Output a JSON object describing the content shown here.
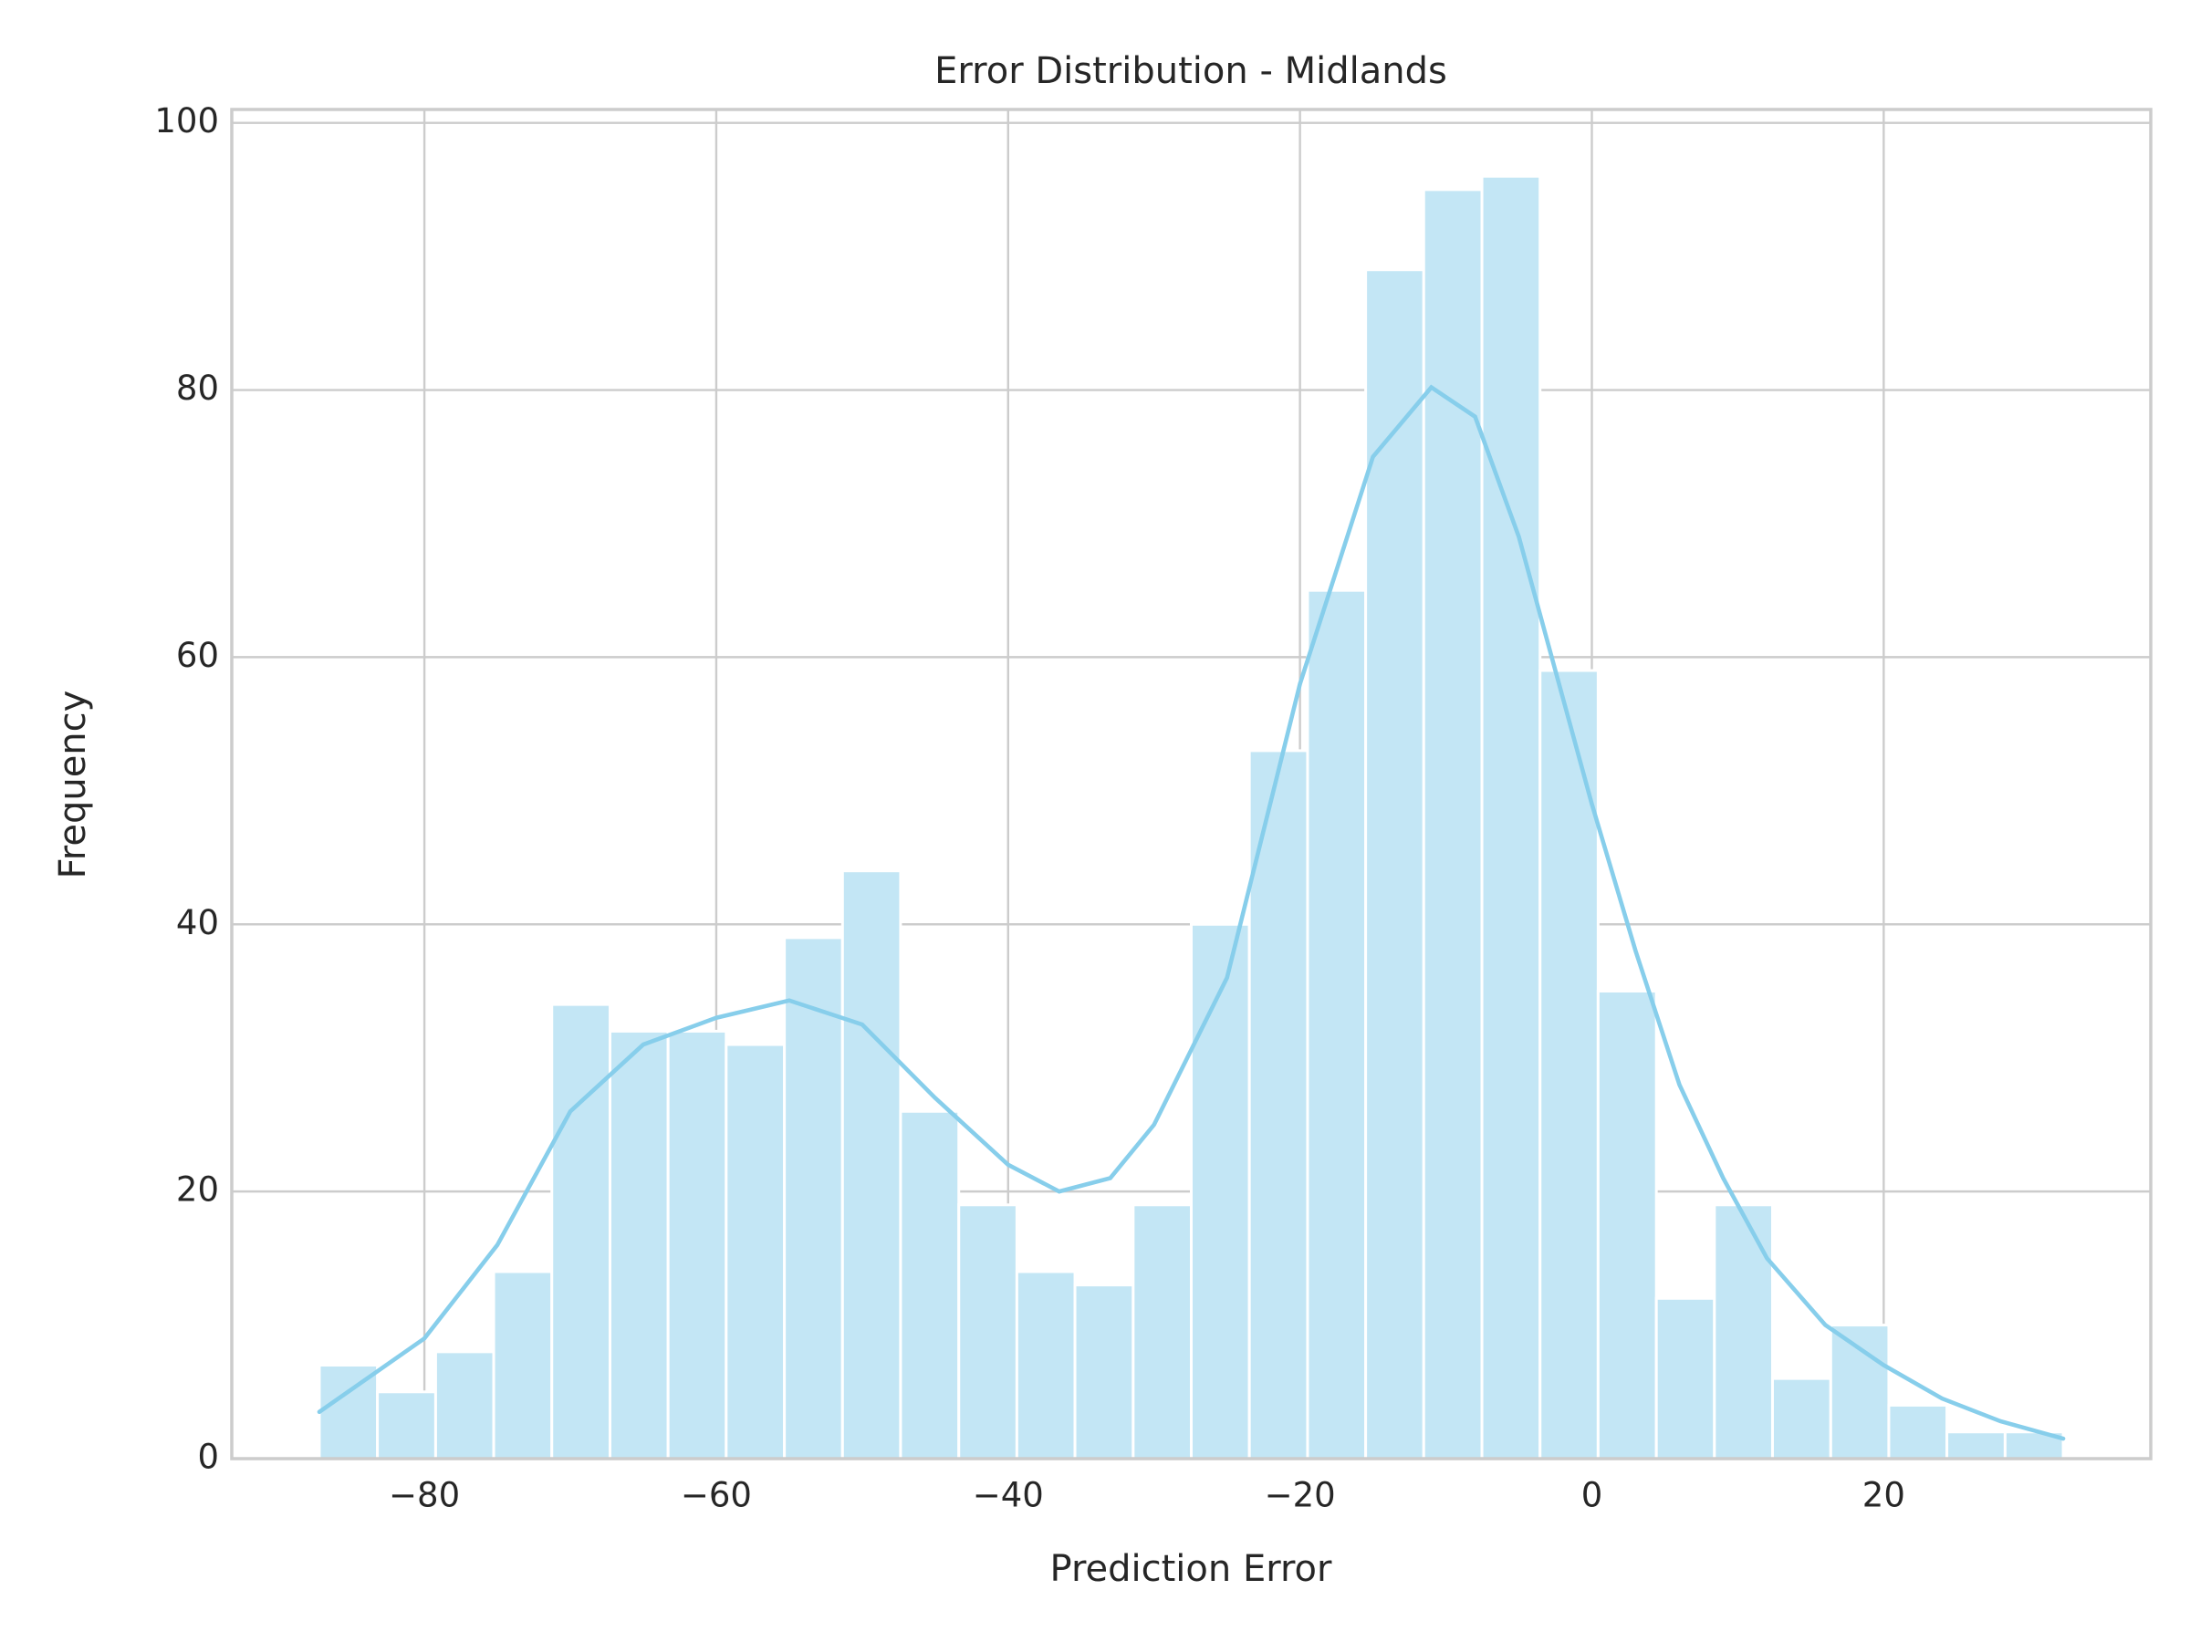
{
  "chart_data": {
    "type": "histogram",
    "title": "Error Distribution - Midlands",
    "xlabel": "Prediction Error",
    "ylabel": "Frequency",
    "bins": [
      -87.2,
      -83.22,
      -79.23,
      -75.25,
      -71.27,
      -67.28,
      -63.3,
      -59.32,
      -55.33,
      -51.35,
      -47.37,
      -43.38,
      -39.4,
      -35.42,
      -31.43,
      -27.45,
      -23.47,
      -19.48,
      -15.5,
      -11.52,
      -7.53,
      -3.55,
      0.43,
      4.42,
      8.4,
      12.38,
      16.37,
      20.35,
      24.33,
      28.32,
      32.3
    ],
    "values": [
      7,
      5,
      8,
      14,
      34,
      32,
      32,
      31,
      39,
      44,
      26,
      19,
      14,
      13,
      19,
      40,
      53,
      65,
      89,
      95,
      96,
      59,
      35,
      12,
      19,
      6,
      10,
      4,
      2,
      2
    ],
    "color": "#c3e6f5",
    "kde": {
      "color": "#87ceeb",
      "x": [
        -87.2,
        -80,
        -75,
        -70,
        -65,
        -60,
        -55,
        -50,
        -45,
        -40,
        -36.5,
        -33,
        -30,
        -25,
        -20,
        -15,
        -11,
        -8,
        -5,
        -2,
        0,
        3,
        6,
        9,
        12,
        16,
        20,
        24,
        28,
        32.3
      ],
      "values": [
        3.5,
        9,
        16,
        26,
        31,
        33,
        34.3,
        32.5,
        27,
        22,
        20,
        21,
        25,
        36,
        58,
        75,
        80.2,
        78,
        69,
        57,
        49,
        38,
        28,
        21,
        15,
        10,
        7,
        4.5,
        2.8,
        1.5
      ]
    },
    "xlim": [
      -93.2,
      38.3
    ],
    "ylim": [
      0,
      101
    ],
    "xticks": [
      {
        "value": -80,
        "label": "−80"
      },
      {
        "value": -60,
        "label": "−60"
      },
      {
        "value": -40,
        "label": "−40"
      },
      {
        "value": -20,
        "label": "−20"
      },
      0,
      20
    ],
    "yticks": [
      0,
      20,
      40,
      60,
      80,
      100
    ],
    "grid": true
  }
}
